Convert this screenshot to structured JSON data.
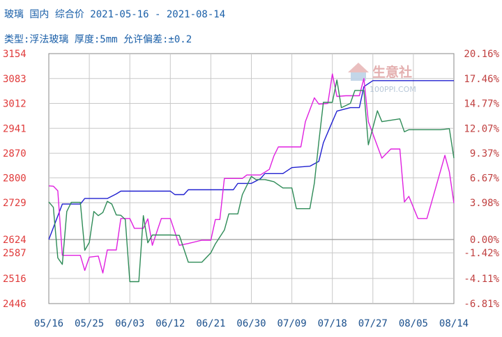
{
  "header": {
    "title": "玻璃 国内 综合价 2021-05-16 - 2021-08-14",
    "subtitle": "类型:浮法玻璃 厚度:5mm 允许偏差:±0.2"
  },
  "watermark": {
    "brand": "生意社",
    "site": "100PPI.COM"
  },
  "colors": {
    "left_axis_text": "#e03b3b",
    "right_axis_text": "#c04040",
    "grid": "#c8c8c8",
    "zero_line": "#9a9a9a",
    "x_text": "#1a4f8c",
    "title_text": "#1a5fa8"
  },
  "chart_data": {
    "type": "line",
    "title": "玻璃 国内 综合价 2021-05-16 - 2021-08-14",
    "subtitle": "类型:浮法玻璃 厚度:5mm 允许偏差:±0.2",
    "x_ticks": [
      "05/16",
      "05/25",
      "06/03",
      "06/12",
      "06/21",
      "06/30",
      "07/09",
      "07/18",
      "07/27",
      "08/05",
      "08/14"
    ],
    "x_start": "2021-05-16",
    "x_end": "2021-08-14",
    "y_left_ticks": [
      "3154",
      "3083",
      "3012",
      "2941",
      "2870",
      "2800",
      "2729",
      "2624",
      "2587",
      "2516",
      "2446"
    ],
    "y_left_range": [
      2446,
      3154
    ],
    "y_left_upper_ticks": [
      3154,
      3083,
      3012,
      2941,
      2870,
      2800,
      2729
    ],
    "y_left_lower_ticks": [
      2624,
      2587,
      2516,
      2446
    ],
    "y_right_ticks": [
      "20.16%",
      "17.46%",
      "14.77%",
      "12.07%",
      "9.37%",
      "6.67%",
      "3.98%",
      "0.00%",
      "-1.42%",
      "-4.11%",
      "-6.81%"
    ],
    "y_right_range": [
      -6.81,
      20.16
    ],
    "grid": true,
    "series": [
      {
        "color": "#2020d0",
        "points": [
          [
            "2021-05-16",
            2624
          ],
          [
            "2021-05-19",
            2725
          ],
          [
            "2021-05-23",
            2725
          ],
          [
            "2021-05-24",
            2741
          ],
          [
            "2021-05-29",
            2741
          ],
          [
            "2021-05-31",
            2754
          ],
          [
            "2021-06-01",
            2762
          ],
          [
            "2021-06-12",
            2762
          ],
          [
            "2021-06-13",
            2752
          ],
          [
            "2021-06-15",
            2752
          ],
          [
            "2021-06-16",
            2766
          ],
          [
            "2021-06-26",
            2766
          ],
          [
            "2021-06-27",
            2784
          ],
          [
            "2021-06-30",
            2784
          ],
          [
            "2021-07-02",
            2797
          ],
          [
            "2021-07-03",
            2812
          ],
          [
            "2021-07-07",
            2812
          ],
          [
            "2021-07-09",
            2829
          ],
          [
            "2021-07-13",
            2833
          ],
          [
            "2021-07-15",
            2847
          ],
          [
            "2021-07-16",
            2900
          ],
          [
            "2021-07-18",
            2960
          ],
          [
            "2021-07-19",
            2990
          ],
          [
            "2021-07-22",
            3000
          ],
          [
            "2021-07-24",
            3000
          ],
          [
            "2021-07-25",
            3060
          ],
          [
            "2021-07-27",
            3077
          ],
          [
            "2021-08-14",
            3077
          ]
        ]
      },
      {
        "color": "#e020e0",
        "points": [
          [
            "2021-05-16",
            2777
          ],
          [
            "2021-05-17",
            2776
          ],
          [
            "2021-05-18",
            2763
          ],
          [
            "2021-05-19",
            2580
          ],
          [
            "2021-05-23",
            2580
          ],
          [
            "2021-05-24",
            2538
          ],
          [
            "2021-05-25",
            2575
          ],
          [
            "2021-05-27",
            2578
          ],
          [
            "2021-05-28",
            2531
          ],
          [
            "2021-05-29",
            2595
          ],
          [
            "2021-05-31",
            2595
          ],
          [
            "2021-06-01",
            2684
          ],
          [
            "2021-06-03",
            2684
          ],
          [
            "2021-06-04",
            2656
          ],
          [
            "2021-06-06",
            2656
          ],
          [
            "2021-06-07",
            2683
          ],
          [
            "2021-06-08",
            2608
          ],
          [
            "2021-06-10",
            2684
          ],
          [
            "2021-06-12",
            2684
          ],
          [
            "2021-06-14",
            2608
          ],
          [
            "2021-06-16",
            2613
          ],
          [
            "2021-06-19",
            2622
          ],
          [
            "2021-06-21",
            2622
          ],
          [
            "2021-06-22",
            2681
          ],
          [
            "2021-06-23",
            2681
          ],
          [
            "2021-06-24",
            2798
          ],
          [
            "2021-06-28",
            2798
          ],
          [
            "2021-06-29",
            2808
          ],
          [
            "2021-07-02",
            2808
          ],
          [
            "2021-07-04",
            2824
          ],
          [
            "2021-07-05",
            2862
          ],
          [
            "2021-07-06",
            2888
          ],
          [
            "2021-07-11",
            2888
          ],
          [
            "2021-07-12",
            2960
          ],
          [
            "2021-07-14",
            3028
          ],
          [
            "2021-07-15",
            3010
          ],
          [
            "2021-07-17",
            3012
          ],
          [
            "2021-07-18",
            3096
          ],
          [
            "2021-07-19",
            3032
          ],
          [
            "2021-07-21",
            3034
          ],
          [
            "2021-07-24",
            3034
          ],
          [
            "2021-07-25",
            3083
          ],
          [
            "2021-07-26",
            2960
          ],
          [
            "2021-07-29",
            2856
          ],
          [
            "2021-07-31",
            2882
          ],
          [
            "2021-08-02",
            2882
          ],
          [
            "2021-08-03",
            2731
          ],
          [
            "2021-08-04",
            2747
          ],
          [
            "2021-08-06",
            2684
          ],
          [
            "2021-08-08",
            2684
          ],
          [
            "2021-08-09",
            2728
          ],
          [
            "2021-08-12",
            2864
          ],
          [
            "2021-08-13",
            2817
          ],
          [
            "2021-08-14",
            2728
          ]
        ]
      },
      {
        "color": "#2e8b57",
        "points": [
          [
            "2021-05-16",
            2731
          ],
          [
            "2021-05-17",
            2716
          ],
          [
            "2021-05-18",
            2573
          ],
          [
            "2021-05-19",
            2555
          ],
          [
            "2021-05-20",
            2704
          ],
          [
            "2021-05-21",
            2730
          ],
          [
            "2021-05-23",
            2730
          ],
          [
            "2021-05-24",
            2594
          ],
          [
            "2021-05-25",
            2616
          ],
          [
            "2021-05-26",
            2704
          ],
          [
            "2021-05-27",
            2692
          ],
          [
            "2021-05-28",
            2701
          ],
          [
            "2021-05-29",
            2733
          ],
          [
            "2021-05-30",
            2725
          ],
          [
            "2021-05-31",
            2694
          ],
          [
            "2021-06-01",
            2693
          ],
          [
            "2021-06-02",
            2681
          ],
          [
            "2021-06-03",
            2507
          ],
          [
            "2021-06-05",
            2507
          ],
          [
            "2021-06-06",
            2692
          ],
          [
            "2021-06-07",
            2615
          ],
          [
            "2021-06-08",
            2637
          ],
          [
            "2021-06-12",
            2637
          ],
          [
            "2021-06-14",
            2636
          ],
          [
            "2021-06-16",
            2561
          ],
          [
            "2021-06-19",
            2561
          ],
          [
            "2021-06-21",
            2587
          ],
          [
            "2021-06-22",
            2612
          ],
          [
            "2021-06-24",
            2651
          ],
          [
            "2021-06-25",
            2697
          ],
          [
            "2021-06-27",
            2697
          ],
          [
            "2021-06-28",
            2752
          ],
          [
            "2021-06-30",
            2804
          ],
          [
            "2021-07-01",
            2795
          ],
          [
            "2021-07-03",
            2795
          ],
          [
            "2021-07-05",
            2789
          ],
          [
            "2021-07-07",
            2771
          ],
          [
            "2021-07-09",
            2771
          ],
          [
            "2021-07-10",
            2712
          ],
          [
            "2021-07-11",
            2712
          ],
          [
            "2021-07-13",
            2712
          ],
          [
            "2021-07-14",
            2785
          ],
          [
            "2021-07-15",
            2903
          ],
          [
            "2021-07-16",
            3015
          ],
          [
            "2021-07-18",
            3015
          ],
          [
            "2021-07-19",
            3079
          ],
          [
            "2021-07-20",
            3000
          ],
          [
            "2021-07-22",
            3012
          ],
          [
            "2021-07-23",
            3049
          ],
          [
            "2021-07-25",
            3049
          ],
          [
            "2021-07-26",
            2894
          ],
          [
            "2021-07-28",
            2991
          ],
          [
            "2021-07-29",
            2960
          ],
          [
            "2021-08-02",
            2968
          ],
          [
            "2021-08-03",
            2931
          ],
          [
            "2021-08-04",
            2937
          ],
          [
            "2021-08-06",
            2937
          ],
          [
            "2021-08-11",
            2937
          ],
          [
            "2021-08-13",
            2940
          ],
          [
            "2021-08-14",
            2856
          ]
        ]
      }
    ]
  }
}
